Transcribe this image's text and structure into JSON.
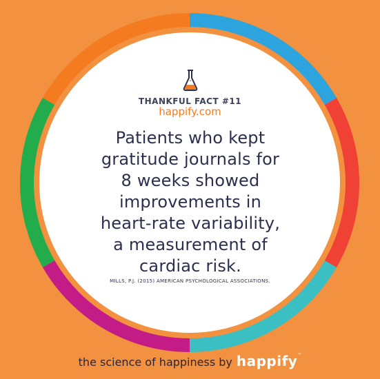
{
  "badge": {
    "kicker": "THANKFUL FACT #11",
    "site": "happify.com",
    "icon": "flask-icon"
  },
  "fact": {
    "text": "Patients who kept gratitude journals for 8 weeks showed improvements in heart-rate variability, a measurement of cardiac risk."
  },
  "citation": "MILLS, P.J. (2015) AMERICAN PSYCHOLOGICAL ASSOCIATIONS.",
  "footer": {
    "tagline": "the science of happiness by",
    "brand": "happify",
    "tm": "™"
  },
  "colors": {
    "background": "#f2913f",
    "text": "#2b2f4f",
    "accent": "#f47b20",
    "ring": [
      "#2ea4df",
      "#ef4136",
      "#3bbfc3",
      "#c41c87",
      "#22ac4b",
      "#f47b20"
    ]
  }
}
